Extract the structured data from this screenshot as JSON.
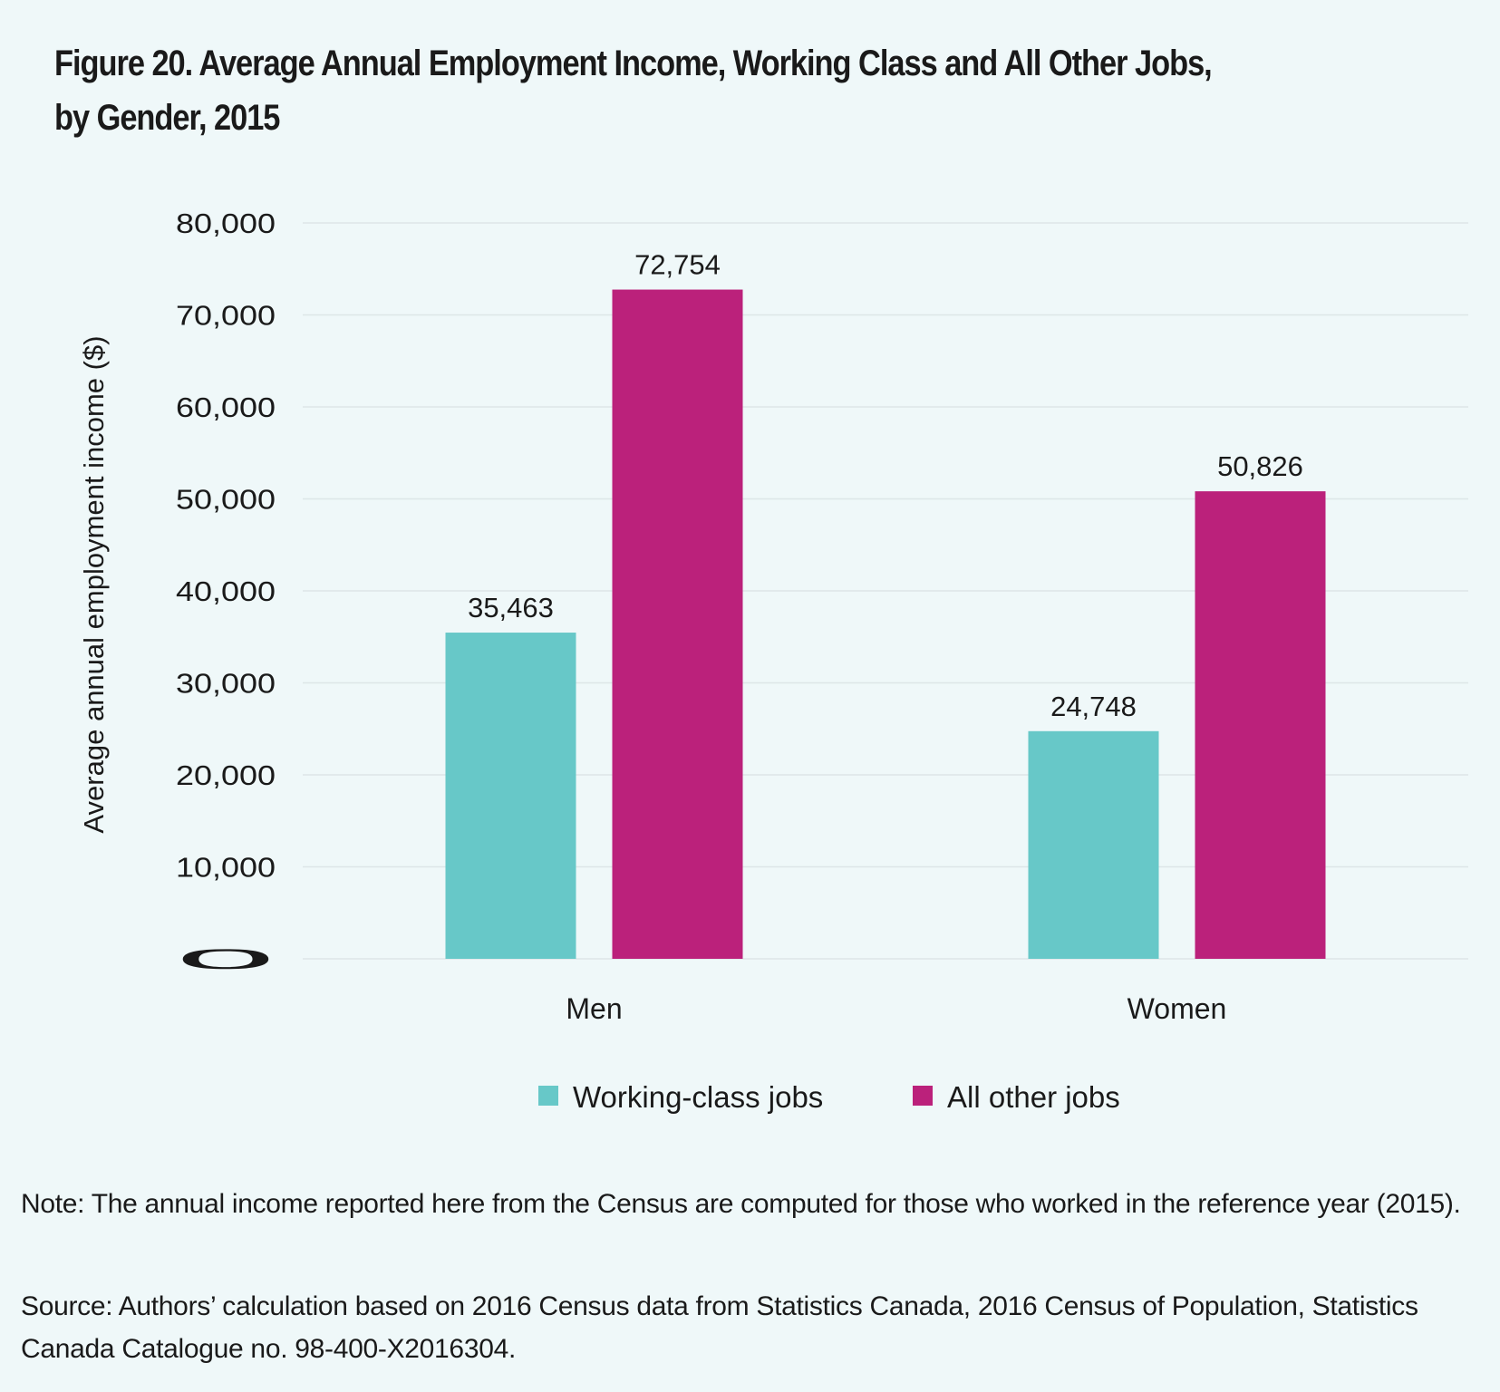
{
  "title_line1": "Figure 20. Average Annual Employment Income, Working Class and All Other Jobs,",
  "title_line2": "by Gender, 2015",
  "note": "Note: The annual income reported here from the Census are computed for those who worked in the reference year (2015).",
  "source": "Source: Authors’ calculation based on 2016 Census data from Statistics Canada, 2016 Census of Population, Statistics Canada Catalogue no. 98-400-X2016304.",
  "chart_data": {
    "type": "bar",
    "title": "Figure 20. Average Annual Employment Income, Working Class and All Other Jobs, by Gender, 2015",
    "xlabel": "",
    "ylabel": "Average annual employment income ($)",
    "ylim": [
      0,
      80000
    ],
    "yticks": [
      0,
      10000,
      20000,
      30000,
      40000,
      50000,
      60000,
      70000,
      80000
    ],
    "ytick_labels": [
      "0",
      "10,000",
      "20,000",
      "30,000",
      "40,000",
      "50,000",
      "60,000",
      "70,000",
      "80,000"
    ],
    "grid": true,
    "legend_position": "bottom",
    "categories": [
      "Men",
      "Women"
    ],
    "series": [
      {
        "name": "Working-class jobs",
        "color": "#67c8c8",
        "values": [
          35463,
          24748
        ],
        "labels": [
          "35,463",
          "24,748"
        ]
      },
      {
        "name": "All other jobs",
        "color": "#bb217b",
        "values": [
          72754,
          50826
        ],
        "labels": [
          "72,754",
          "50,826"
        ]
      }
    ]
  }
}
